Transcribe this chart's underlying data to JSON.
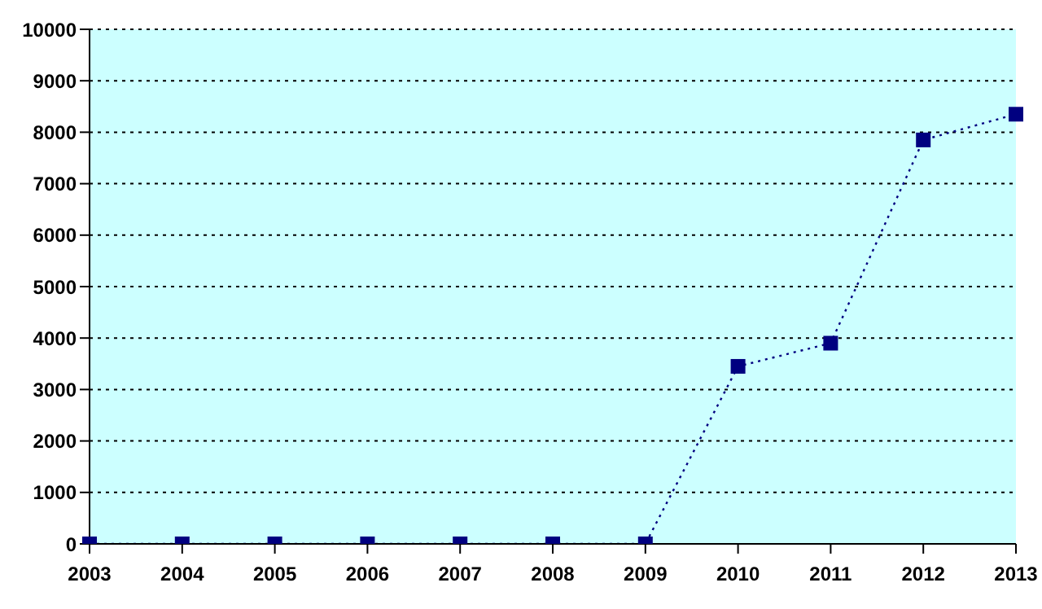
{
  "chart_data": {
    "type": "line",
    "categories": [
      "2003",
      "2004",
      "2005",
      "2006",
      "2007",
      "2008",
      "2009",
      "2010",
      "2011",
      "2012",
      "2013"
    ],
    "series": [
      {
        "color": "#000080",
        "values": [
          0,
          0,
          0,
          0,
          0,
          0,
          0,
          3450,
          3900,
          7850,
          8350
        ]
      }
    ],
    "ylim": [
      0,
      10000
    ],
    "yticks": [
      0,
      1000,
      2000,
      3000,
      4000,
      5000,
      6000,
      7000,
      8000,
      9000,
      10000
    ],
    "grid": "y",
    "legend": false,
    "marker": "square",
    "line_style": "dotted"
  }
}
